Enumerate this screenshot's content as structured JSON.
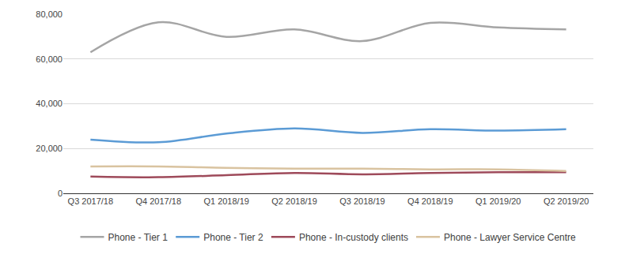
{
  "chart_data": {
    "type": "line",
    "categories": [
      "Q3 2017/18",
      "Q4 2017/18",
      "Q1 2018/19",
      "Q2 2018/19",
      "Q3 2018/19",
      "Q4 2018/19",
      "Q1 2019/20",
      "Q2 2019/20"
    ],
    "series": [
      {
        "name": "Phone - Tier 1",
        "color": "#a5a5a5",
        "values": [
          63000,
          76400,
          69900,
          73200,
          68000,
          76100,
          74100,
          73200
        ]
      },
      {
        "name": "Phone - Tier 2",
        "color": "#5b9bd5",
        "values": [
          24000,
          22800,
          26700,
          29000,
          27000,
          28600,
          28000,
          28600
        ]
      },
      {
        "name": "Phone - In-custody clients",
        "color": "#9e4a5a",
        "values": [
          7500,
          7200,
          8100,
          9100,
          8500,
          9100,
          9400,
          9400
        ]
      },
      {
        "name": "Phone - Lawyer Service Centre",
        "color": "#d9c3a0",
        "values": [
          12000,
          12000,
          11400,
          11000,
          11000,
          10700,
          10700,
          10000
        ]
      }
    ],
    "ylim": [
      0,
      80000
    ],
    "yticks": [
      0,
      {
        "value": 20000,
        "label": "20,000"
      },
      {
        "value": 40000,
        "label": "40,000"
      },
      {
        "value": 60000,
        "label": "60,000"
      },
      {
        "value": 80000,
        "label": "80,000"
      }
    ],
    "grid": true,
    "legend": "bottom",
    "line_style": "smooth"
  }
}
